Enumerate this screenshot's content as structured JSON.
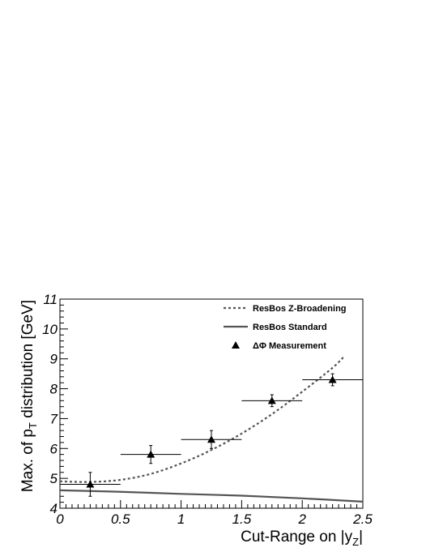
{
  "chart_data": {
    "type": "scatter",
    "xlabel_main": "Cut-Range on |y",
    "xlabel_sub": "Z",
    "xlabel_end": "|",
    "ylabel_main": "Max. of p",
    "ylabel_sub": "T",
    "ylabel_end": " distribution [GeV]",
    "xlim": [
      0,
      2.5
    ],
    "ylim": [
      4,
      11
    ],
    "x_ticks": [
      "0",
      "0.5",
      "1",
      "1.5",
      "2",
      "2.5"
    ],
    "y_ticks": [
      "4",
      "5",
      "6",
      "7",
      "8",
      "9",
      "10",
      "11"
    ],
    "grid": false,
    "legend_position": "top-right",
    "series": [
      {
        "name": "ResBos Z-Broadening",
        "style": "dashed-line",
        "color": "#555555",
        "x": [
          0.0,
          0.25,
          0.5,
          0.75,
          1.0,
          1.25,
          1.5,
          1.75,
          2.0,
          2.25,
          2.35
        ],
        "y": [
          4.9,
          4.88,
          4.95,
          5.15,
          5.5,
          5.95,
          6.5,
          7.15,
          7.9,
          8.7,
          9.1
        ]
      },
      {
        "name": "ResBos Standard",
        "style": "solid-line",
        "color": "#555555",
        "x": [
          0.0,
          0.5,
          1.0,
          1.5,
          2.0,
          2.5
        ],
        "y": [
          4.6,
          4.55,
          4.48,
          4.42,
          4.33,
          4.22
        ]
      },
      {
        "name": "ΔΦ Measurement",
        "style": "triangle-markers",
        "color": "#000000",
        "x": [
          0.25,
          0.75,
          1.25,
          1.75,
          2.25
        ],
        "y": [
          4.8,
          5.8,
          6.3,
          7.6,
          8.3
        ],
        "x_err": [
          0.25,
          0.25,
          0.25,
          0.25,
          0.25
        ],
        "y_err": [
          0.4,
          0.3,
          0.3,
          0.2,
          0.2
        ]
      }
    ]
  }
}
